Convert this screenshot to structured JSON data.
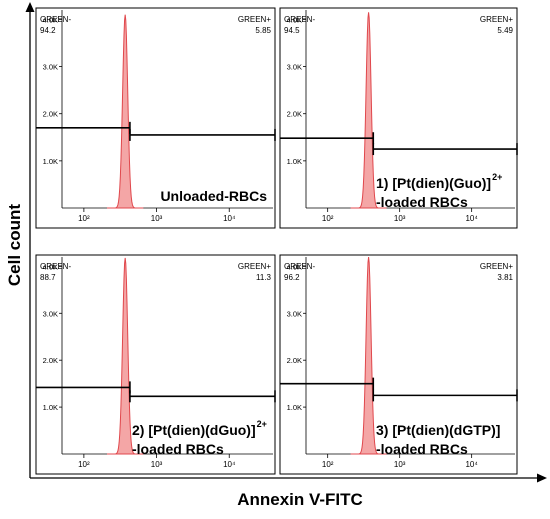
{
  "figure": {
    "ylabel": "Cell count",
    "xlabel": "Annexin V-FITC"
  },
  "chart_data": [
    {
      "type": "histogram",
      "panel": 1,
      "gate_left_label": "GREEN-",
      "gate_left_value": "94.2",
      "gate_right_label": "GREEN+",
      "gate_right_value": "5.85",
      "caption_lines": [
        "Unloaded-RBCs"
      ],
      "caption_sup": "",
      "y_ticks": [
        "1.0K",
        "2.0K",
        "3.0K",
        "4.0K"
      ],
      "y_tick_values": [
        1000,
        2000,
        3000,
        4000
      ],
      "x_ticks": [
        "10²",
        "10³",
        "10⁴"
      ],
      "x_tick_values": [
        100,
        1000,
        10000
      ],
      "xlim": [
        50,
        40000
      ],
      "ylim": [
        0,
        4200
      ],
      "peak": {
        "center": 370,
        "height": 4100
      },
      "gate_split": 430,
      "gate_left_y": 1700,
      "gate_right_y": 1550
    },
    {
      "type": "histogram",
      "panel": 2,
      "gate_left_label": "GREEN-",
      "gate_left_value": "94.5",
      "gate_right_label": "GREEN+",
      "gate_right_value": "5.49",
      "caption_lines": [
        "1) [Pt(dien)(Guo)]",
        "-loaded RBCs"
      ],
      "caption_sup": "2+",
      "y_ticks": [
        "1.0K",
        "2.0K",
        "3.0K",
        "4.0K"
      ],
      "y_tick_values": [
        1000,
        2000,
        3000,
        4000
      ],
      "x_ticks": [
        "10²",
        "10³",
        "10⁴"
      ],
      "x_tick_values": [
        100,
        1000,
        10000
      ],
      "xlim": [
        50,
        40000
      ],
      "ylim": [
        0,
        4200
      ],
      "peak": {
        "center": 370,
        "height": 4150
      },
      "gate_split": 430,
      "gate_left_y": 1480,
      "gate_right_y": 1250
    },
    {
      "type": "histogram",
      "panel": 3,
      "gate_left_label": "GREEN-",
      "gate_left_value": "88.7",
      "gate_right_label": "GREEN+",
      "gate_right_value": "11.3",
      "caption_lines": [
        "2) [Pt(dien)(dGuo)]",
        "-loaded RBCs"
      ],
      "caption_sup": "2+",
      "y_ticks": [
        "1.0K",
        "2.0K",
        "3.0K",
        "4.0K"
      ],
      "y_tick_values": [
        1000,
        2000,
        3000,
        4000
      ],
      "x_ticks": [
        "10²",
        "10³",
        "10⁴"
      ],
      "x_tick_values": [
        100,
        1000,
        10000
      ],
      "xlim": [
        50,
        40000
      ],
      "ylim": [
        0,
        4200
      ],
      "peak": {
        "center": 370,
        "height": 4180
      },
      "gate_split": 430,
      "gate_left_y": 1420,
      "gate_right_y": 1230
    },
    {
      "type": "histogram",
      "panel": 4,
      "gate_left_label": "GREEN-",
      "gate_left_value": "96.2",
      "gate_right_label": "GREEN+",
      "gate_right_value": "3.81",
      "caption_lines": [
        "3) [Pt(dien)(dGTP)]",
        "-loaded RBCs"
      ],
      "caption_sup": "",
      "y_ticks": [
        "1.0K",
        "2.0K",
        "3.0K",
        "4.0K"
      ],
      "y_tick_values": [
        1000,
        2000,
        3000,
        4000
      ],
      "x_ticks": [
        "10²",
        "10³",
        "10⁴"
      ],
      "x_tick_values": [
        100,
        1000,
        10000
      ],
      "xlim": [
        50,
        40000
      ],
      "ylim": [
        0,
        4200
      ],
      "peak": {
        "center": 370,
        "height": 4200
      },
      "gate_split": 430,
      "gate_left_y": 1500,
      "gate_right_y": 1250
    }
  ],
  "colors": {
    "peak_fill": "#f4a6a6",
    "peak_stroke": "#e0474c",
    "frame": "#000000",
    "gate": "#000000"
  }
}
